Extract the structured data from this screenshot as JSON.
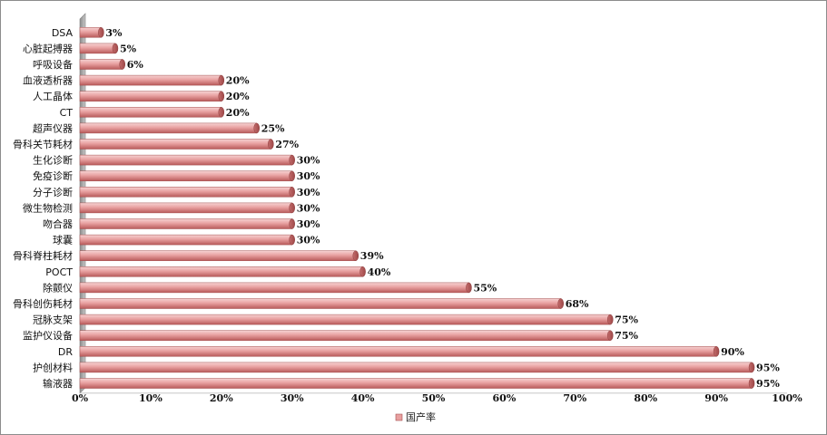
{
  "chart_data": {
    "type": "bar",
    "orientation": "horizontal",
    "title": "",
    "xlabel": "",
    "ylabel": "",
    "categories": [
      "DSA",
      "心脏起搏器",
      "呼吸设备",
      "血液透析器",
      "人工晶体",
      "CT",
      "超声仪器",
      "骨科关节耗材",
      "生化诊断",
      "免疫诊断",
      "分子诊断",
      "微生物检测",
      "吻合器",
      "球囊",
      "骨科脊柱耗材",
      "POCT",
      "除颤仪",
      "骨科创伤耗材",
      "冠脉支架",
      "监护仪设备",
      "DR",
      "护创材料",
      "输液器"
    ],
    "series": [
      {
        "name": "国产率",
        "values": [
          3,
          5,
          6,
          20,
          20,
          20,
          25,
          27,
          30,
          30,
          30,
          30,
          30,
          30,
          39,
          40,
          55,
          68,
          75,
          75,
          90,
          95,
          95
        ]
      }
    ],
    "data_labels": [
      "3%",
      "5%",
      "6%",
      "20%",
      "20%",
      "20%",
      "25%",
      "27%",
      "30%",
      "30%",
      "30%",
      "30%",
      "30%",
      "30%",
      "39%",
      "40%",
      "55%",
      "68%",
      "75%",
      "75%",
      "90%",
      "95%",
      "95%"
    ],
    "xlim": [
      0,
      100
    ],
    "x_ticks": [
      "0%",
      "10%",
      "20%",
      "30%",
      "40%",
      "50%",
      "60%",
      "70%",
      "80%",
      "90%",
      "100%"
    ],
    "grid": false,
    "legend": {
      "position": "bottom",
      "entries": [
        "国产率"
      ]
    },
    "colors": {
      "bar": "#e8a0a0",
      "bar_dark": "#b85a5a",
      "bar_light": "#f6d3d3",
      "axis_wall": "#a6a6a6"
    }
  }
}
